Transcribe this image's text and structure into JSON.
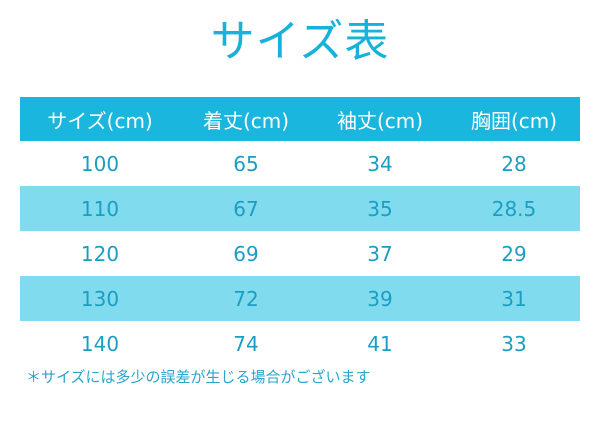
{
  "header": {
    "title": "サイズ表"
  },
  "table": {
    "columns": [
      "サイズ(cm)",
      "着丈(cm)",
      "袖丈(cm)",
      "胸囲(cm)"
    ],
    "rows": [
      [
        100,
        65,
        34,
        28
      ],
      [
        110,
        67,
        35,
        28.5
      ],
      [
        120,
        69,
        37,
        29
      ],
      [
        130,
        72,
        39,
        31
      ],
      [
        140,
        74,
        41,
        33
      ]
    ]
  },
  "note": "＊サイズには多少の誤差が生じる場合がございます"
}
